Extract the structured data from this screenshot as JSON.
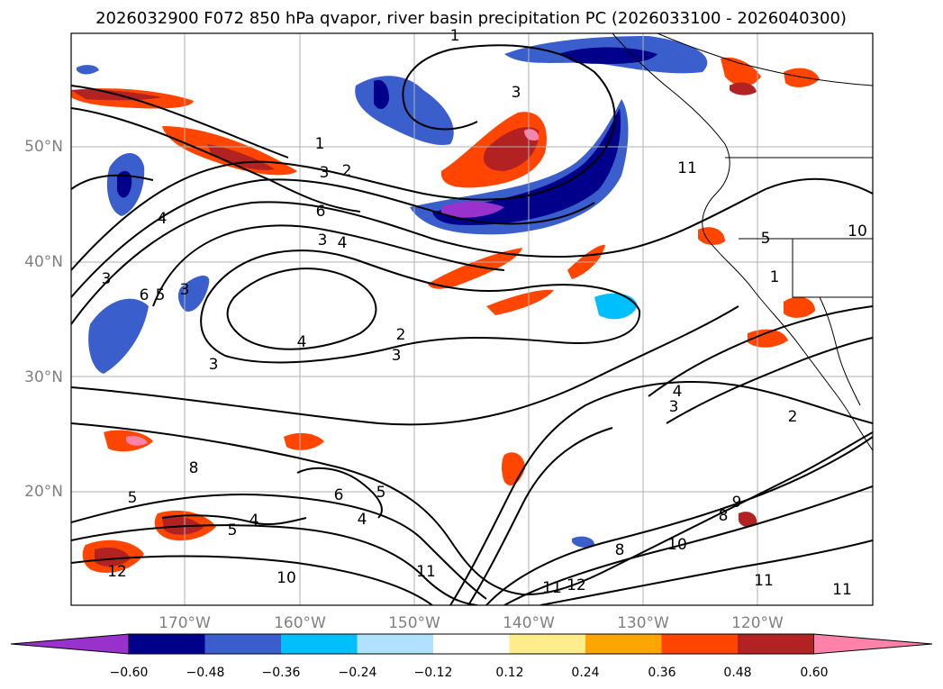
{
  "title": "2026032900 F072 850 hPa qvapor, river basin precipitation PC (2026033100 - 2026040300)",
  "map": {
    "lat_labels": [
      "50°N",
      "40°N",
      "30°N",
      "20°N"
    ],
    "lon_labels": [
      "170°W",
      "160°W",
      "150°W",
      "140°W",
      "130°W",
      "120°W"
    ],
    "gridlines": true
  },
  "colorbar": {
    "extend": "both",
    "colors": [
      "#9932cc",
      "#00008b",
      "#3a5fcd",
      "#00bfff",
      "#b0e2ff",
      "#ffffff",
      "#ffec8b",
      "#ffa500",
      "#ff4500",
      "#b22222",
      "#ff82ab"
    ],
    "labels": [
      "−0.60",
      "−0.48",
      "−0.36",
      "−0.24",
      "−0.12",
      "0.12",
      "0.24",
      "0.36",
      "0.48",
      "0.60"
    ]
  },
  "contour_labels": [
    "1",
    "3",
    "1",
    "3",
    "2",
    "6",
    "3",
    "4",
    "4",
    "3",
    "6",
    "5",
    "3",
    "4",
    "2",
    "3",
    "3",
    "3",
    "4",
    "2",
    "5",
    "8",
    "5",
    "6",
    "4",
    "5",
    "5",
    "4",
    "8",
    "11",
    "12",
    "10",
    "11",
    "11",
    "12",
    "8",
    "10",
    "9",
    "11",
    "10",
    "11",
    "1",
    "5"
  ]
}
